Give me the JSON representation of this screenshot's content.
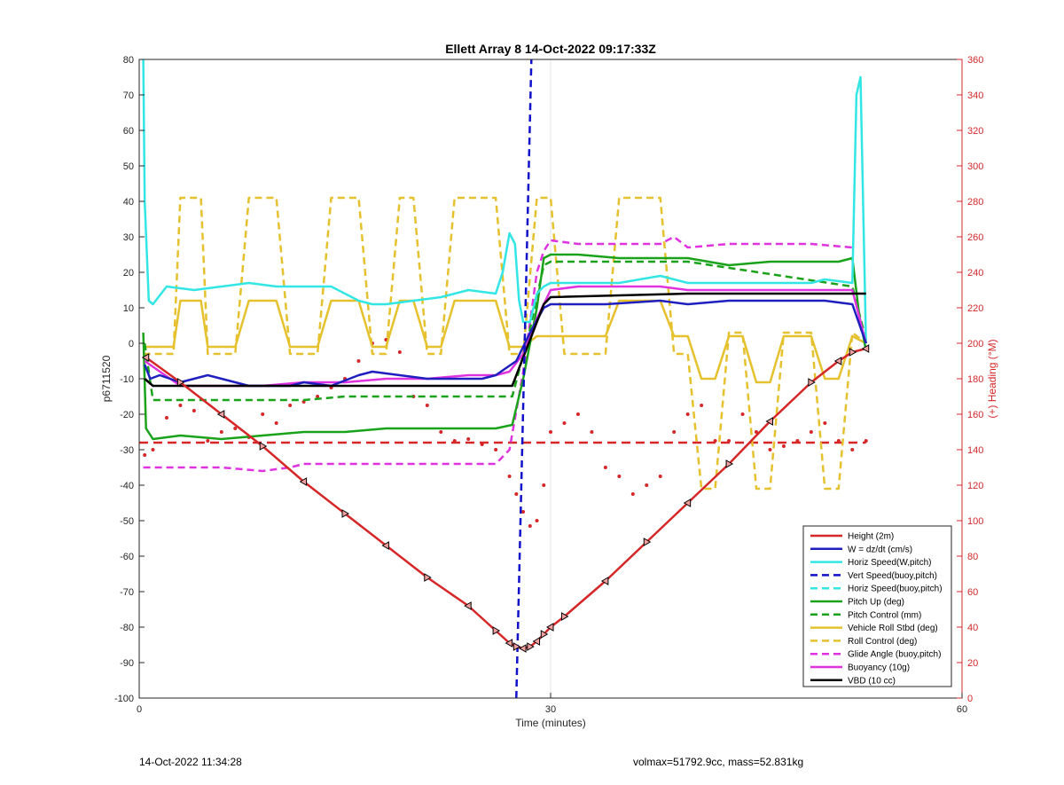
{
  "footer": {
    "timestamp": "14-Oct-2022 11:34:28",
    "summary": "volmax=51792.9cc, mass=52.831kg"
  },
  "chart_data": {
    "type": "line",
    "title": "Ellett Array 8 14-Oct-2022 09:17:33Z",
    "xlabel": "Time (minutes)",
    "ylabel": "p6711520",
    "y2label": "(+) Heading (°M)",
    "xlim": [
      0,
      60
    ],
    "ylim": [
      -100,
      80
    ],
    "y2lim": [
      0,
      360
    ],
    "xticks": [
      0,
      30,
      60
    ],
    "yticks": [
      -100,
      -90,
      -80,
      -70,
      -60,
      -50,
      -40,
      -30,
      -20,
      -10,
      0,
      10,
      20,
      30,
      40,
      50,
      60,
      70,
      80
    ],
    "y2ticks": [
      0,
      20,
      40,
      60,
      80,
      100,
      120,
      140,
      160,
      180,
      200,
      220,
      240,
      260,
      280,
      300,
      320,
      340,
      360
    ],
    "grid": "x-only",
    "legend_position": "bottom-right",
    "series": [
      {
        "name": "Height (2m)",
        "color": "#d62728",
        "style": "solid",
        "markers": "triangle",
        "x": [
          0.5,
          3,
          6,
          9,
          12,
          15,
          18,
          21,
          24,
          26,
          27,
          27.5,
          28,
          28.5,
          29,
          29.5,
          30,
          31,
          34,
          37,
          40,
          43,
          46,
          49,
          51,
          52,
          53
        ],
        "y": [
          -4,
          -11,
          -20,
          -29,
          -39,
          -48,
          -57,
          -66,
          -74,
          -81,
          -84.5,
          -85.5,
          -86,
          -85.5,
          -84,
          -82,
          -80,
          -77,
          -67,
          -56,
          -45,
          -34,
          -22,
          -11,
          -5,
          -2.5,
          -1.5
        ]
      },
      {
        "name": "W = dz/dt (cm/s)",
        "color": "#1f1fbf",
        "style": "solid",
        "x": [
          0.4,
          0.8,
          1.5,
          3,
          5,
          7,
          8,
          11,
          12,
          14,
          16,
          17,
          19,
          21,
          23,
          25,
          26,
          27.5,
          28.5,
          29.5,
          30,
          31,
          34,
          38,
          40,
          43,
          46,
          50,
          52,
          53
        ],
        "y": [
          -6,
          -10,
          -9,
          -11,
          -9,
          -11,
          -12,
          -12,
          -11,
          -12,
          -9,
          -8,
          -9,
          -10,
          -10,
          -10,
          -9,
          -5,
          3,
          10,
          11,
          11,
          11,
          12,
          11,
          12,
          12,
          12,
          11,
          0
        ]
      },
      {
        "name": "Horiz Speed(W,pitch)",
        "color": "#33e6e6",
        "style": "solid",
        "x": [
          0.3,
          0.4,
          0.7,
          1,
          2,
          4,
          6,
          8,
          10,
          12,
          14,
          16,
          17,
          18,
          20,
          22,
          24,
          26,
          26.5,
          27,
          27.4,
          27.7,
          28,
          28.5,
          29,
          29.5,
          30,
          32,
          35,
          38,
          40,
          43,
          46,
          49,
          50,
          52,
          52.3,
          52.6,
          53
        ],
        "y": [
          80,
          40,
          12,
          11,
          16,
          15,
          16,
          17,
          16,
          16,
          16,
          12,
          11,
          11,
          12,
          13,
          15,
          14,
          20,
          31,
          28,
          12,
          6,
          6,
          14,
          16,
          17,
          17,
          17,
          19,
          17,
          17,
          17,
          17,
          18,
          17,
          70,
          75,
          0
        ]
      },
      {
        "name": "Vert Speed(buoy,pitch)",
        "color": "#1111cc",
        "style": "dashed",
        "x": [
          27.5,
          28.6
        ],
        "y": [
          -100,
          80
        ]
      },
      {
        "name": "Horiz Speed(buoy,pitch)",
        "color": "#33e6e6",
        "style": "dashed",
        "x": [],
        "y": []
      },
      {
        "name": "Pitch Up (deg)",
        "color": "#1aa31a",
        "style": "solid",
        "x": [
          0.3,
          0.5,
          1,
          3,
          6,
          9,
          12,
          15,
          18,
          21,
          24,
          26,
          27.2,
          28,
          29,
          29.5,
          30,
          32,
          35,
          38,
          40,
          43,
          46,
          49,
          51,
          52,
          52.5,
          53
        ],
        "y": [
          3,
          -24,
          -27,
          -26,
          -27,
          -26,
          -25,
          -25,
          -24,
          -24,
          -24,
          -24,
          -23,
          -10,
          10,
          24,
          25,
          25,
          24,
          24,
          24,
          22,
          23,
          23,
          23,
          24,
          8,
          -2
        ]
      },
      {
        "name": "Pitch Control (mm)",
        "color": "#1aa31a",
        "style": "dashed",
        "x": [
          0.4,
          1,
          5,
          9,
          12,
          15,
          18,
          21,
          24,
          26,
          27.2,
          28.5,
          29.5,
          30,
          40,
          52,
          53
        ],
        "y": [
          0,
          -16,
          -16,
          -16,
          -16,
          -15,
          -15,
          -15,
          -15,
          -15,
          -15,
          4,
          22,
          23,
          23,
          16,
          1
        ]
      },
      {
        "name": "Vehicle Roll Stbd (deg)",
        "color": "#e6c12e",
        "style": "solid",
        "x": [
          0.3,
          1,
          2.5,
          3,
          4.5,
          5,
          7,
          8,
          10,
          11,
          13,
          14,
          16,
          17,
          18,
          19,
          20,
          21,
          22,
          23,
          26,
          27,
          28,
          29,
          30,
          31,
          34,
          35,
          38,
          39,
          40,
          41,
          42,
          43,
          44,
          45,
          46,
          47,
          48,
          49,
          50,
          51,
          52,
          53
        ],
        "y": [
          -1,
          -1,
          -1,
          12,
          12,
          -1,
          -1,
          12,
          12,
          -1,
          -1,
          12,
          12,
          -1,
          -1,
          12,
          12,
          -1,
          -1,
          12,
          12,
          -1,
          -1,
          2,
          2,
          2,
          2,
          12,
          12,
          2,
          2,
          -10,
          -10,
          2,
          2,
          -11,
          -11,
          2,
          2,
          2,
          -10,
          -10,
          2,
          0
        ]
      },
      {
        "name": "Roll Control (deg)",
        "color": "#e6c12e",
        "style": "dashed",
        "x": [
          0.3,
          1.5,
          2.5,
          3,
          4.5,
          5,
          7,
          8,
          10,
          11,
          13,
          14,
          16,
          17,
          18,
          19,
          20,
          21,
          22,
          23,
          26,
          27,
          28,
          29,
          30,
          31,
          34,
          35,
          38,
          39,
          40,
          41,
          42,
          43,
          44,
          45,
          46,
          47,
          48,
          49,
          50,
          51,
          52,
          53
        ],
        "y": [
          -3,
          -3,
          -3,
          41,
          41,
          -3,
          -3,
          41,
          41,
          -3,
          -3,
          41,
          41,
          -3,
          -3,
          41,
          41,
          -3,
          -3,
          41,
          41,
          -3,
          -3,
          41,
          41,
          -3,
          -3,
          41,
          41,
          -3,
          -3,
          -41,
          -41,
          3,
          3,
          -41,
          -41,
          3,
          3,
          3,
          -41,
          -41,
          3,
          0
        ]
      },
      {
        "name": "Glide Angle (buoy,pitch)",
        "color": "#e033e0",
        "style": "dashed",
        "x": [
          0.3,
          3,
          6,
          9,
          11,
          12,
          15,
          18,
          21,
          24,
          26,
          27,
          28,
          29,
          29.5,
          30,
          32,
          35,
          38,
          39,
          40,
          43,
          46,
          49,
          52
        ],
        "y": [
          -35,
          -35,
          -35,
          -36,
          -35,
          -34,
          -34,
          -34,
          -34,
          -34,
          -34,
          -30,
          -8,
          20,
          26,
          29,
          28,
          28,
          28,
          30,
          27,
          28,
          28,
          28,
          27
        ]
      },
      {
        "name": "Buoyancy (10g)",
        "color": "#e033e0",
        "style": "solid",
        "x": [
          0.4,
          3,
          6,
          9,
          12,
          15,
          18,
          21,
          24,
          26,
          27,
          28,
          29,
          30,
          32,
          35,
          38,
          40,
          43,
          46,
          49,
          52,
          53
        ],
        "y": [
          -5,
          -12,
          -12,
          -12,
          -11,
          -11,
          -10,
          -10,
          -9,
          -9,
          -8,
          -3,
          7,
          15,
          16,
          16,
          16,
          15,
          15,
          15,
          15,
          15,
          0
        ]
      },
      {
        "name": "VBD (10 cc)",
        "color": "#000000",
        "style": "solid",
        "x": [
          0.4,
          1,
          5,
          10,
          15,
          20,
          26,
          27.2,
          29.5,
          30,
          40,
          52,
          53
        ],
        "y": [
          -10,
          -12,
          -12,
          -12,
          -12,
          -12,
          -12,
          -12,
          11,
          13,
          14,
          14,
          14
        ]
      }
    ],
    "heading_series": {
      "name": "Heading",
      "axis": "right",
      "color": "#d62728",
      "style": "dotted-markers",
      "x": [
        0.4,
        1,
        2,
        3,
        4,
        5,
        6,
        7,
        8,
        9,
        10,
        11,
        12,
        13,
        14,
        15,
        16,
        17,
        18,
        19,
        20,
        21,
        22,
        23,
        24,
        25,
        26,
        27,
        27.5,
        28,
        28.5,
        29,
        29.5,
        30,
        31,
        32,
        33,
        34,
        35,
        36,
        37,
        38,
        39,
        40,
        41,
        42,
        43,
        44,
        45,
        46,
        47,
        48,
        49,
        50,
        51,
        52,
        53
      ],
      "y": [
        137,
        140,
        158,
        165,
        162,
        145,
        150,
        152,
        147,
        160,
        155,
        165,
        167,
        170,
        175,
        180,
        190,
        200,
        202,
        195,
        170,
        165,
        150,
        145,
        146,
        143,
        140,
        125,
        115,
        105,
        97,
        100,
        120,
        150,
        155,
        160,
        150,
        130,
        125,
        115,
        120,
        125,
        150,
        160,
        165,
        145,
        145,
        160,
        150,
        140,
        142,
        145,
        150,
        155,
        145,
        140,
        145
      ]
    },
    "heading_reference": {
      "axis": "right",
      "value": 144,
      "color": "#d62728",
      "style": "dashed"
    }
  }
}
